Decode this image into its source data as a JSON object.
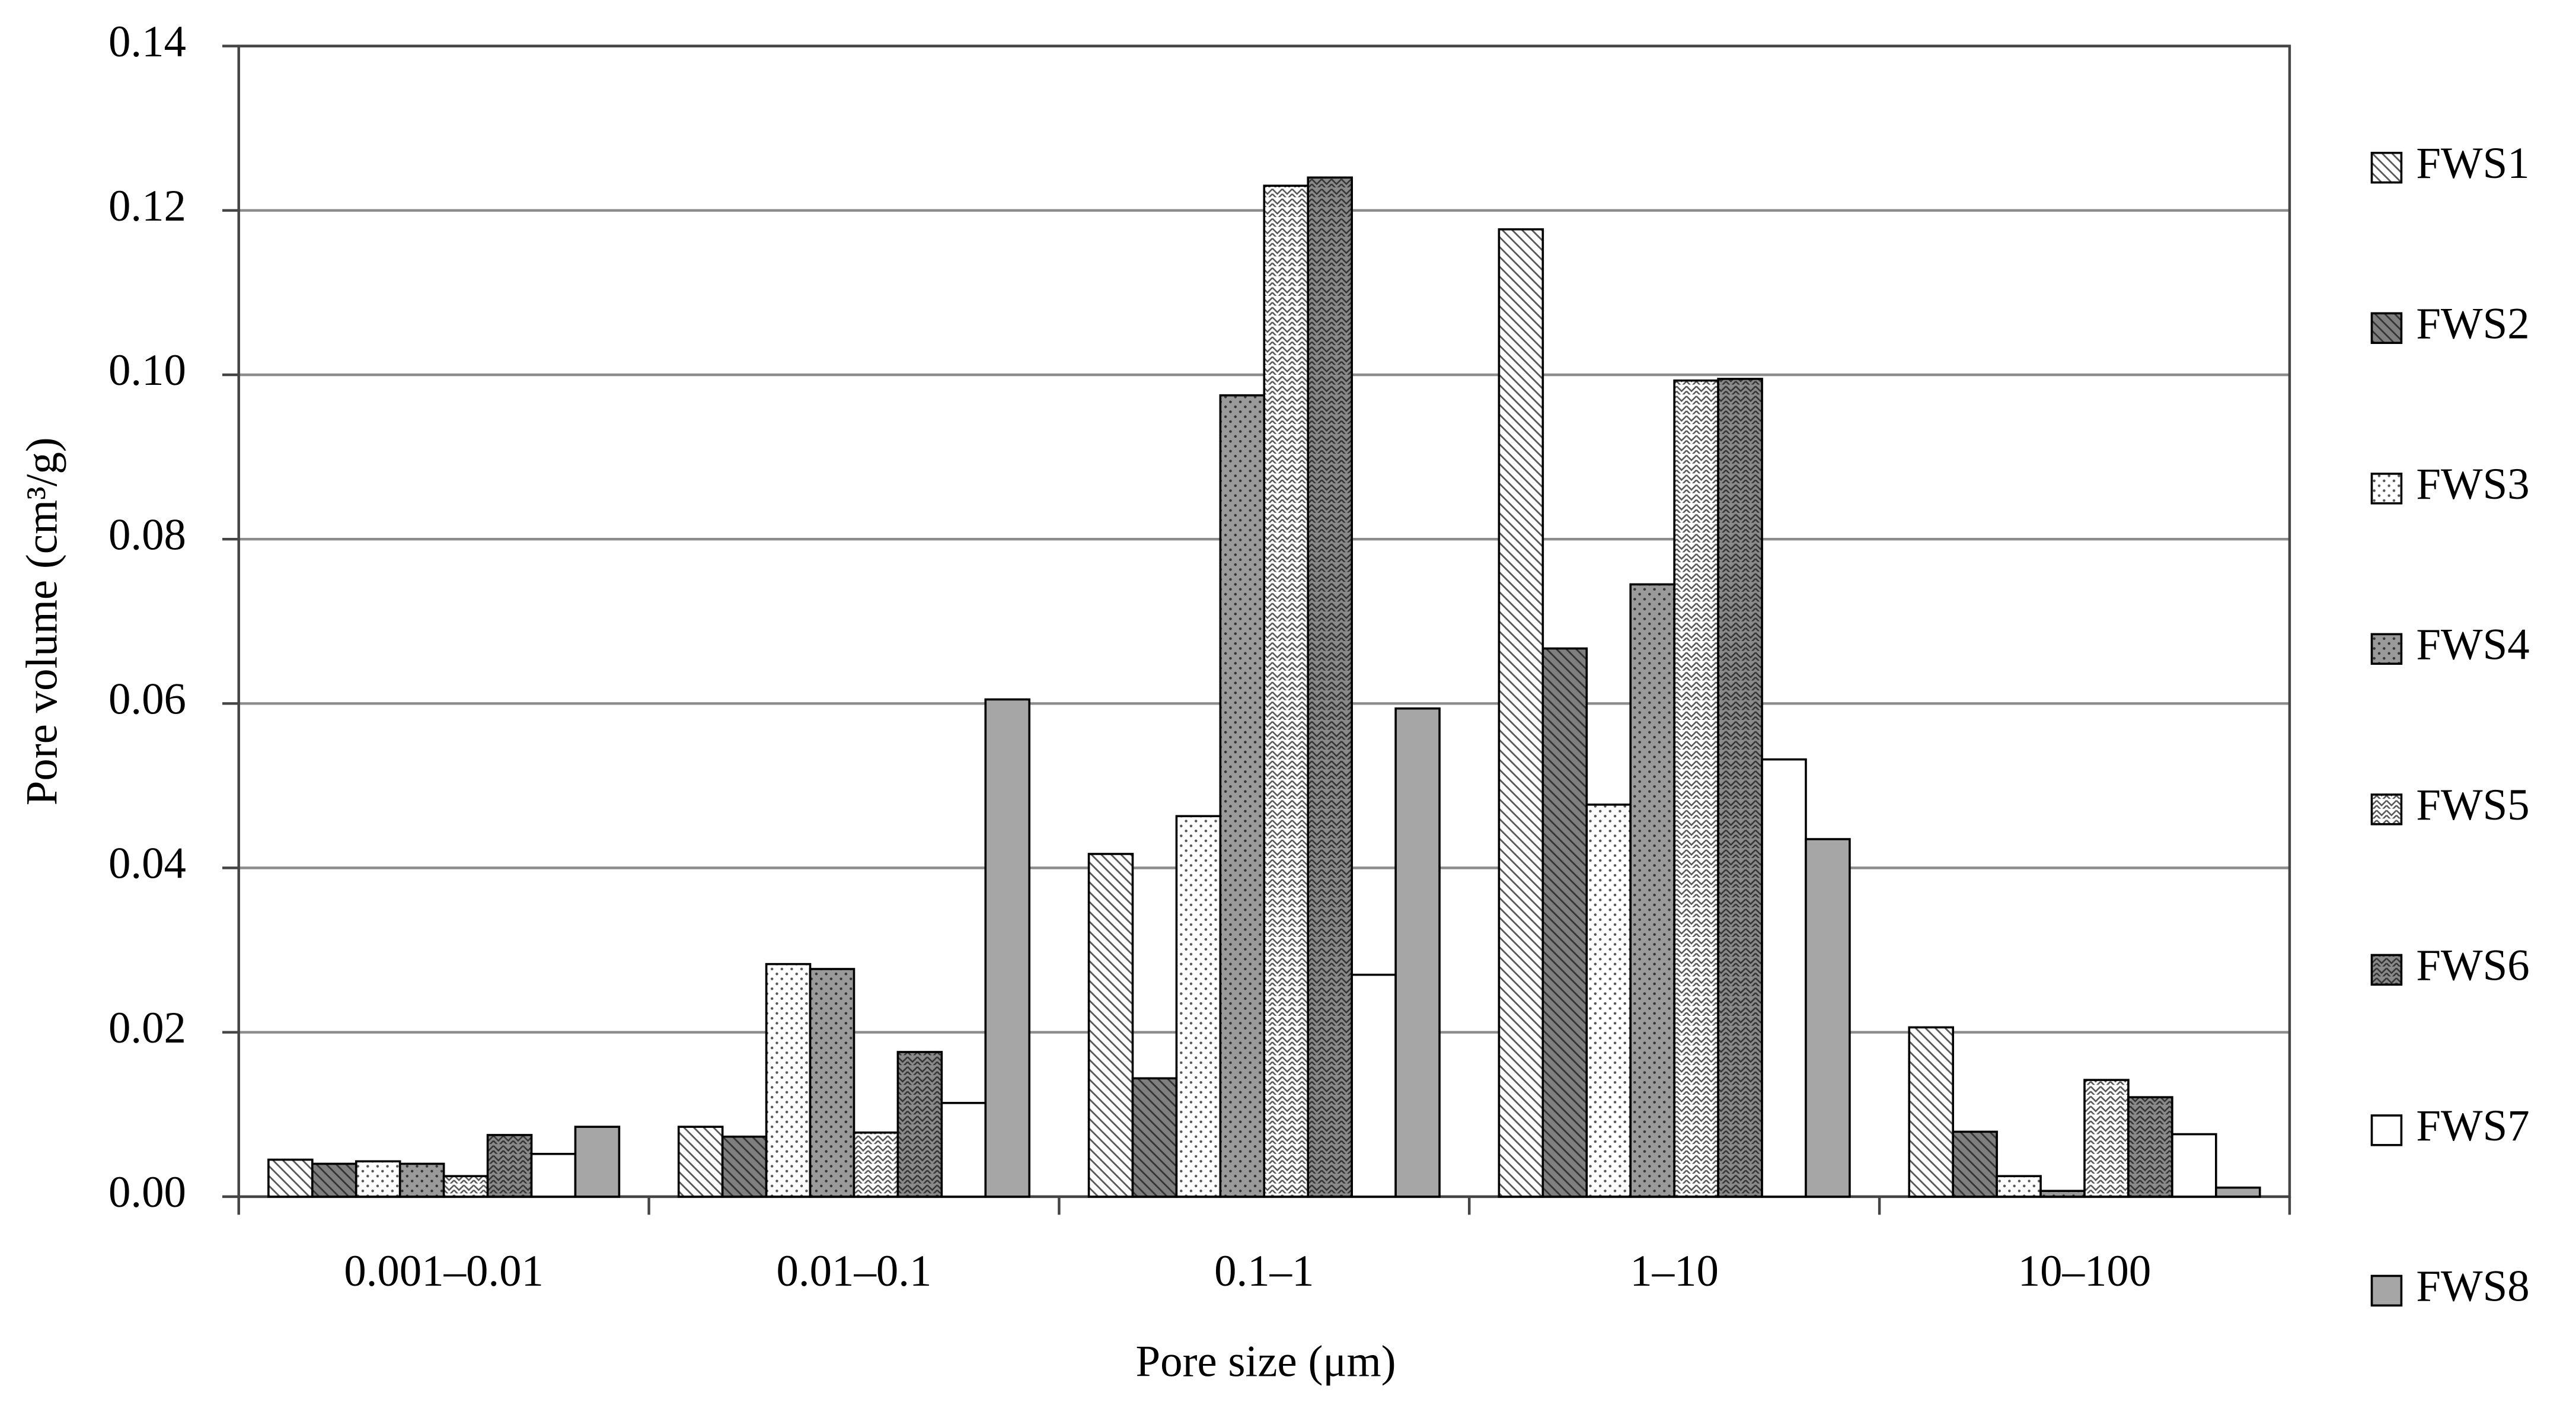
{
  "chart_data": {
    "type": "bar",
    "x_label": "Pore size (μm)",
    "y_label": "Pore volume (cm³/g)",
    "categories": [
      "0.001–0.01",
      "0.01–0.1",
      "0.1–1",
      "1–10",
      "10–100"
    ],
    "series": [
      {
        "name": "FWS1",
        "color": "#ffffff",
        "values": [
          0.0045,
          0.0085,
          0.0417,
          0.1177,
          0.0206
        ]
      },
      {
        "name": "FWS2",
        "color": "#7f7f7f",
        "values": [
          0.004,
          0.0073,
          0.0144,
          0.0667,
          0.0079
        ]
      },
      {
        "name": "FWS3",
        "color": "#ffffff",
        "values": [
          0.0043,
          0.0283,
          0.0463,
          0.0477,
          0.0025
        ]
      },
      {
        "name": "FWS4",
        "color": "#9a9a9a",
        "values": [
          0.004,
          0.0277,
          0.0975,
          0.0745,
          0.0007
        ]
      },
      {
        "name": "FWS5",
        "color": "#ffffff",
        "values": [
          0.0025,
          0.0078,
          0.123,
          0.0993,
          0.0142
        ]
      },
      {
        "name": "FWS6",
        "color": "#8a8a8a",
        "values": [
          0.0075,
          0.0176,
          0.124,
          0.0995,
          0.0121
        ]
      },
      {
        "name": "FWS7",
        "color": "#ffffff",
        "values": [
          0.0052,
          0.0114,
          0.027,
          0.0532,
          0.0076
        ]
      },
      {
        "name": "FWS8",
        "color": "#a6a6a6",
        "values": [
          0.0085,
          0.0605,
          0.0594,
          0.0435,
          0.0011
        ]
      }
    ],
    "ylim": [
      0,
      0.14
    ],
    "yticks": [
      {
        "value": 0,
        "label": "0.00"
      },
      0.02,
      0.04,
      0.06,
      0.08,
      {
        "value": 0.1,
        "label": "0.10"
      },
      0.12,
      0.14
    ],
    "grid": true,
    "legend": "right"
  }
}
